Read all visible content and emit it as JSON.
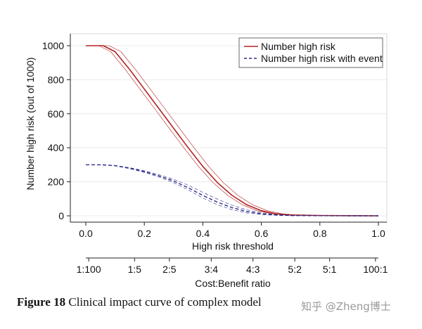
{
  "chart_data": {
    "type": "line",
    "title": "",
    "xlabel": "High risk threshold",
    "ylabel": "Number high risk (out of 1000)",
    "xlim": [
      0,
      1
    ],
    "ylim": [
      0,
      1000
    ],
    "grid": true,
    "legend_position": "top-right",
    "x_ticks": [
      "0.0",
      "0.2",
      "0.4",
      "0.6",
      "0.8",
      "1.0"
    ],
    "y_ticks": [
      "0",
      "200",
      "400",
      "600",
      "800",
      "1000"
    ],
    "secondary_axis": {
      "label": "Cost:Benefit ratio",
      "ticks": [
        {
          "x": 0.0099,
          "label": "1:100"
        },
        {
          "x": 0.1667,
          "label": "1:5"
        },
        {
          "x": 0.2857,
          "label": "2:5"
        },
        {
          "x": 0.4286,
          "label": "3:4"
        },
        {
          "x": 0.5714,
          "label": "4:3"
        },
        {
          "x": 0.7143,
          "label": "5:2"
        },
        {
          "x": 0.8333,
          "label": "5:1"
        },
        {
          "x": 0.9901,
          "label": "100:1"
        }
      ]
    },
    "legend": [
      {
        "label": "Number high risk",
        "color": "#b22222",
        "style": "solid"
      },
      {
        "label": "Number high risk with event",
        "color": "#2b2b8c",
        "style": "dashed"
      }
    ],
    "series": [
      {
        "name": "Number high risk",
        "color": "#b22222",
        "style": "solid",
        "width": 1.6,
        "x": [
          0,
          0.06,
          0.1,
          0.15,
          0.2,
          0.25,
          0.3,
          0.35,
          0.4,
          0.45,
          0.5,
          0.55,
          0.6,
          0.65,
          0.7,
          0.8,
          0.9,
          1.0
        ],
        "y": [
          1000,
          1000,
          965,
          860,
          745,
          630,
          515,
          400,
          290,
          195,
          120,
          65,
          30,
          12,
          5,
          2,
          1,
          0
        ]
      },
      {
        "name": "Number high risk (upper bound)",
        "color": "#b22222",
        "style": "solid",
        "width": 0.6,
        "x": [
          0,
          0.08,
          0.12,
          0.17,
          0.22,
          0.27,
          0.32,
          0.37,
          0.42,
          0.47,
          0.52,
          0.57,
          0.62,
          0.67,
          0.72,
          0.8,
          0.9,
          1.0
        ],
        "y": [
          1000,
          1000,
          965,
          860,
          745,
          630,
          515,
          400,
          290,
          195,
          120,
          65,
          30,
          12,
          5,
          2,
          1,
          0
        ]
      },
      {
        "name": "Number high risk (lower bound)",
        "color": "#b22222",
        "style": "solid",
        "width": 0.6,
        "x": [
          0,
          0.045,
          0.085,
          0.135,
          0.185,
          0.235,
          0.285,
          0.335,
          0.385,
          0.435,
          0.485,
          0.535,
          0.585,
          0.635,
          0.685,
          0.8,
          0.9,
          1.0
        ],
        "y": [
          1000,
          1000,
          965,
          860,
          745,
          630,
          515,
          400,
          290,
          195,
          120,
          65,
          30,
          12,
          5,
          2,
          1,
          0
        ]
      },
      {
        "name": "Number high risk with event",
        "color": "#2b2b8c",
        "style": "dashed",
        "width": 1.4,
        "x": [
          0,
          0.05,
          0.1,
          0.15,
          0.2,
          0.25,
          0.3,
          0.35,
          0.4,
          0.45,
          0.5,
          0.55,
          0.6,
          0.65,
          0.7,
          0.8,
          0.9,
          1.0
        ],
        "y": [
          300,
          300,
          295,
          280,
          260,
          235,
          205,
          165,
          120,
          80,
          48,
          25,
          12,
          5,
          2,
          1,
          0,
          0
        ]
      },
      {
        "name": "Number high risk with event (upper bound)",
        "color": "#2b2b8c",
        "style": "dashed",
        "width": 0.6,
        "x": [
          0,
          0.05,
          0.1,
          0.15,
          0.2,
          0.25,
          0.3,
          0.35,
          0.4,
          0.45,
          0.5,
          0.55,
          0.6,
          0.65,
          0.7,
          0.8,
          0.9,
          1.0
        ],
        "y": [
          300,
          300,
          296,
          283,
          265,
          242,
          215,
          180,
          138,
          98,
          62,
          35,
          18,
          8,
          3,
          1,
          0,
          0
        ]
      },
      {
        "name": "Number high risk with event (lower bound)",
        "color": "#2b2b8c",
        "style": "dashed",
        "width": 0.6,
        "x": [
          0,
          0.05,
          0.1,
          0.15,
          0.2,
          0.25,
          0.3,
          0.35,
          0.4,
          0.45,
          0.5,
          0.55,
          0.6,
          0.65,
          0.7,
          0.8,
          0.9,
          1.0
        ],
        "y": [
          300,
          300,
          294,
          277,
          255,
          228,
          195,
          152,
          105,
          65,
          36,
          17,
          8,
          3,
          1,
          0,
          0,
          0
        ]
      }
    ]
  },
  "caption": {
    "figure_label": "Figure 18",
    "text": " Clinical impact curve of complex model"
  },
  "watermark": "知乎 @Zheng博士"
}
